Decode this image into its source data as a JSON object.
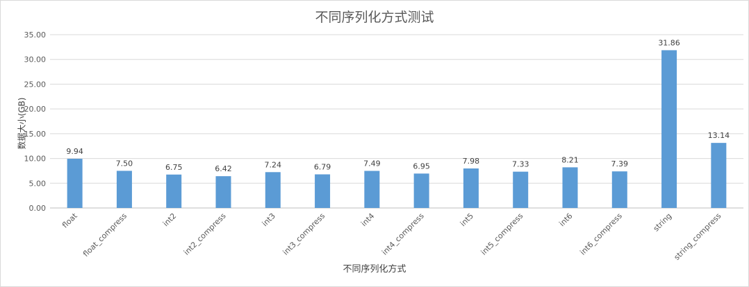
{
  "chart_data": {
    "type": "bar",
    "title": "不同序列化方式测试",
    "xlabel": "不同序列化方式",
    "ylabel": "数据大小(GB)",
    "ylim": [
      0,
      35
    ],
    "yticks": [
      "0.00",
      "5.00",
      "10.00",
      "15.00",
      "20.00",
      "25.00",
      "30.00",
      "35.00"
    ],
    "grid": true,
    "legend": "none",
    "bar_color": "#5b9bd5",
    "categories": [
      "float",
      "float_compress",
      "int2",
      "int2_compress",
      "int3",
      "int3_compress",
      "int4",
      "int4_compress",
      "int5",
      "int5_compress",
      "int6",
      "int6_compress",
      "string",
      "string_compress"
    ],
    "values": [
      9.94,
      7.5,
      6.75,
      6.42,
      7.24,
      6.79,
      7.49,
      6.95,
      7.98,
      7.33,
      8.21,
      7.39,
      31.86,
      13.14
    ],
    "data_labels": [
      "9.94",
      "7.50",
      "6.75",
      "6.42",
      "7.24",
      "6.79",
      "7.49",
      "6.95",
      "7.98",
      "7.33",
      "8.21",
      "7.39",
      "31.86",
      "13.14"
    ]
  }
}
